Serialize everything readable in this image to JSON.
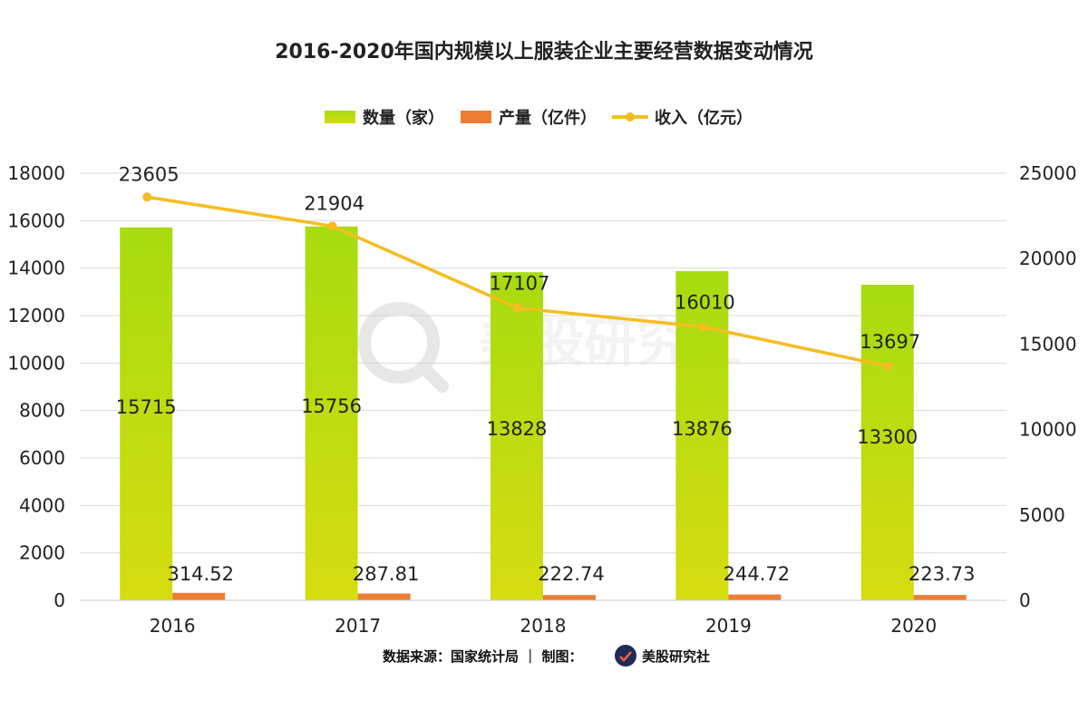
{
  "chart_data": {
    "type": "bar",
    "title": "2016-2020年国内规模以上服装企业主要经营数据变动情况",
    "categories": [
      "2016",
      "2017",
      "2018",
      "2019",
      "2020"
    ],
    "series": [
      {
        "name": "数量（家）",
        "kind": "bar",
        "axis": "left",
        "values": [
          15715,
          15756,
          13828,
          13876,
          13300
        ],
        "labels": [
          "15715",
          "15756",
          "13828",
          "13876",
          "13300"
        ]
      },
      {
        "name": "产量（亿件）",
        "kind": "bar",
        "axis": "left",
        "values": [
          314.52,
          287.81,
          222.74,
          244.72,
          223.73
        ],
        "labels": [
          "314.52",
          "287.81",
          "222.74",
          "244.72",
          "223.73"
        ]
      },
      {
        "name": "收入（亿元）",
        "kind": "line",
        "axis": "right",
        "values": [
          23605,
          21904,
          17107,
          16010,
          13697
        ],
        "labels": [
          "23605",
          "21904",
          "17107",
          "16010",
          "13697"
        ]
      }
    ],
    "y_left": {
      "min": 0,
      "max": 18000,
      "ticks": [
        "0",
        "2000",
        "4000",
        "6000",
        "8000",
        "10000",
        "12000",
        "14000",
        "16000",
        "18000"
      ]
    },
    "y_right": {
      "min": 0,
      "max": 25000,
      "ticks": [
        "0",
        "5000",
        "10000",
        "15000",
        "20000",
        "25000"
      ]
    },
    "grid": true,
    "legend_position": "top"
  },
  "colors": {
    "bar_top": "#a6dc10",
    "bar_bottom": "#d6dc10",
    "bar2": "#ed7d31",
    "line": "#f5bd1f",
    "grid": "#d9d9d9"
  },
  "watermark": {
    "text": "美股研究社",
    "icon": "magnifier-chart-icon"
  },
  "footer": {
    "text": "数据来源：国家统计局 ｜ 制图：",
    "brand": "美股研究社",
    "icon": "brand-logo-icon"
  }
}
